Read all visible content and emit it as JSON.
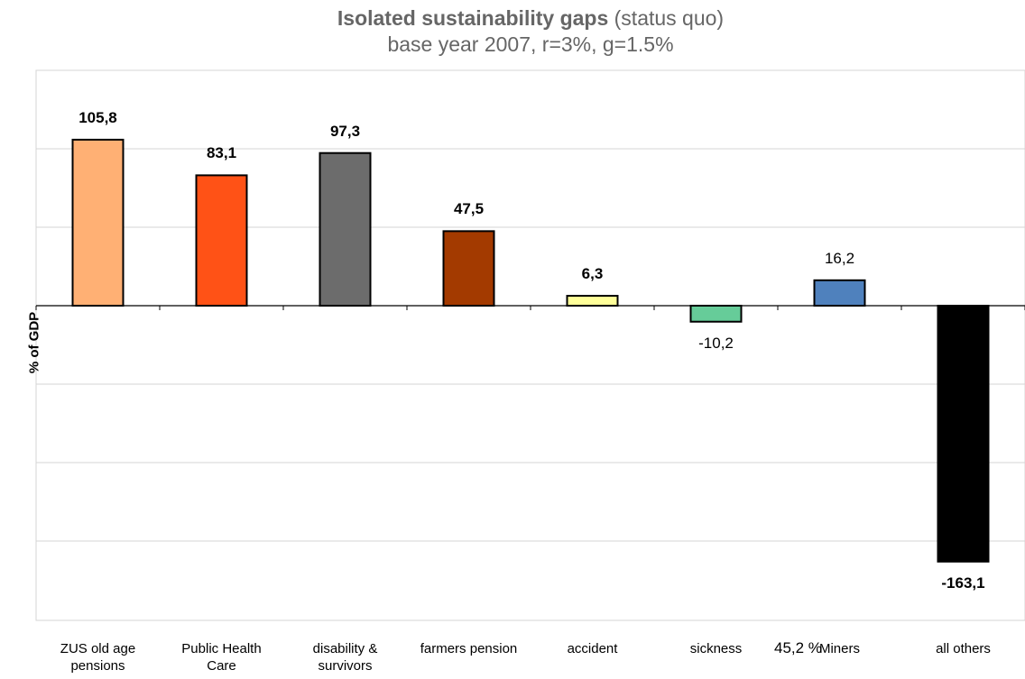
{
  "chart_data": {
    "type": "bar",
    "title_bold": "Isolated sustainability gaps",
    "title_rest": " (status quo)",
    "subtitle": "base year 2007, r=3%, g=1.5%",
    "xlabel": "",
    "ylabel": "% of GDP",
    "ylim": [
      -200,
      200
    ],
    "grid": true,
    "categories": [
      "ZUS old age pensions",
      "Public Health Care",
      "disability & survivors",
      "farmers pension",
      "accident",
      "sickness",
      "Miners",
      "all others"
    ],
    "category_lines": [
      [
        "ZUS old age",
        "pensions"
      ],
      [
        "Public Health",
        "Care"
      ],
      [
        "disability &",
        "survivors"
      ],
      [
        "farmers pension"
      ],
      [
        "accident"
      ],
      [
        "sickness"
      ],
      [
        "Miners"
      ],
      [
        "all others"
      ]
    ],
    "values": [
      105.8,
      83.1,
      97.3,
      47.5,
      6.3,
      -10.2,
      16.2,
      -163.1
    ],
    "value_labels": [
      "105,8",
      "83,1",
      "97,3",
      "47,5",
      "6,3",
      "-10,2",
      "16,2",
      "-163,1"
    ],
    "label_bold": [
      true,
      true,
      true,
      true,
      true,
      false,
      false,
      true
    ],
    "colors": [
      "#FFB074",
      "#FF5216",
      "#6C6C6C",
      "#A33A00",
      "#FFFF99",
      "#66CC99",
      "#4F81BD",
      "#000000"
    ],
    "annotation": "45,2 %"
  }
}
